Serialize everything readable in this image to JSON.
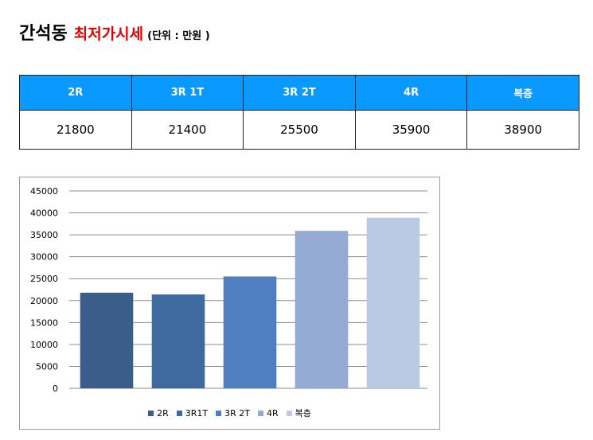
{
  "header": {
    "location": "간석동",
    "subject": "최저가시세",
    "unit": "(단위 : 만원 )"
  },
  "table": {
    "headers": [
      "2R",
      "3R 1T",
      "3R 2T",
      "4R",
      "복층"
    ],
    "values": [
      "21800",
      "21400",
      "25500",
      "35900",
      "38900"
    ]
  },
  "chart_data": {
    "type": "bar",
    "categories": [
      "2R",
      "3R1T",
      "3R 2T",
      "4R",
      "복층"
    ],
    "values": [
      21800,
      21400,
      25500,
      35900,
      38900
    ],
    "colors": [
      "#3b5d8a",
      "#3f6aa0",
      "#4f7fbf",
      "#94aad2",
      "#bac9e4"
    ],
    "ylim": [
      0,
      45000
    ],
    "yticks": [
      "0",
      "5000",
      "10000",
      "15000",
      "20000",
      "25000",
      "30000",
      "35000",
      "40000",
      "45000"
    ],
    "grid": true,
    "legend_position": "bottom",
    "legend": [
      "2R",
      "3R1T",
      "3R 2T",
      "4R",
      "복층"
    ],
    "title": "",
    "xlabel": "",
    "ylabel": ""
  }
}
